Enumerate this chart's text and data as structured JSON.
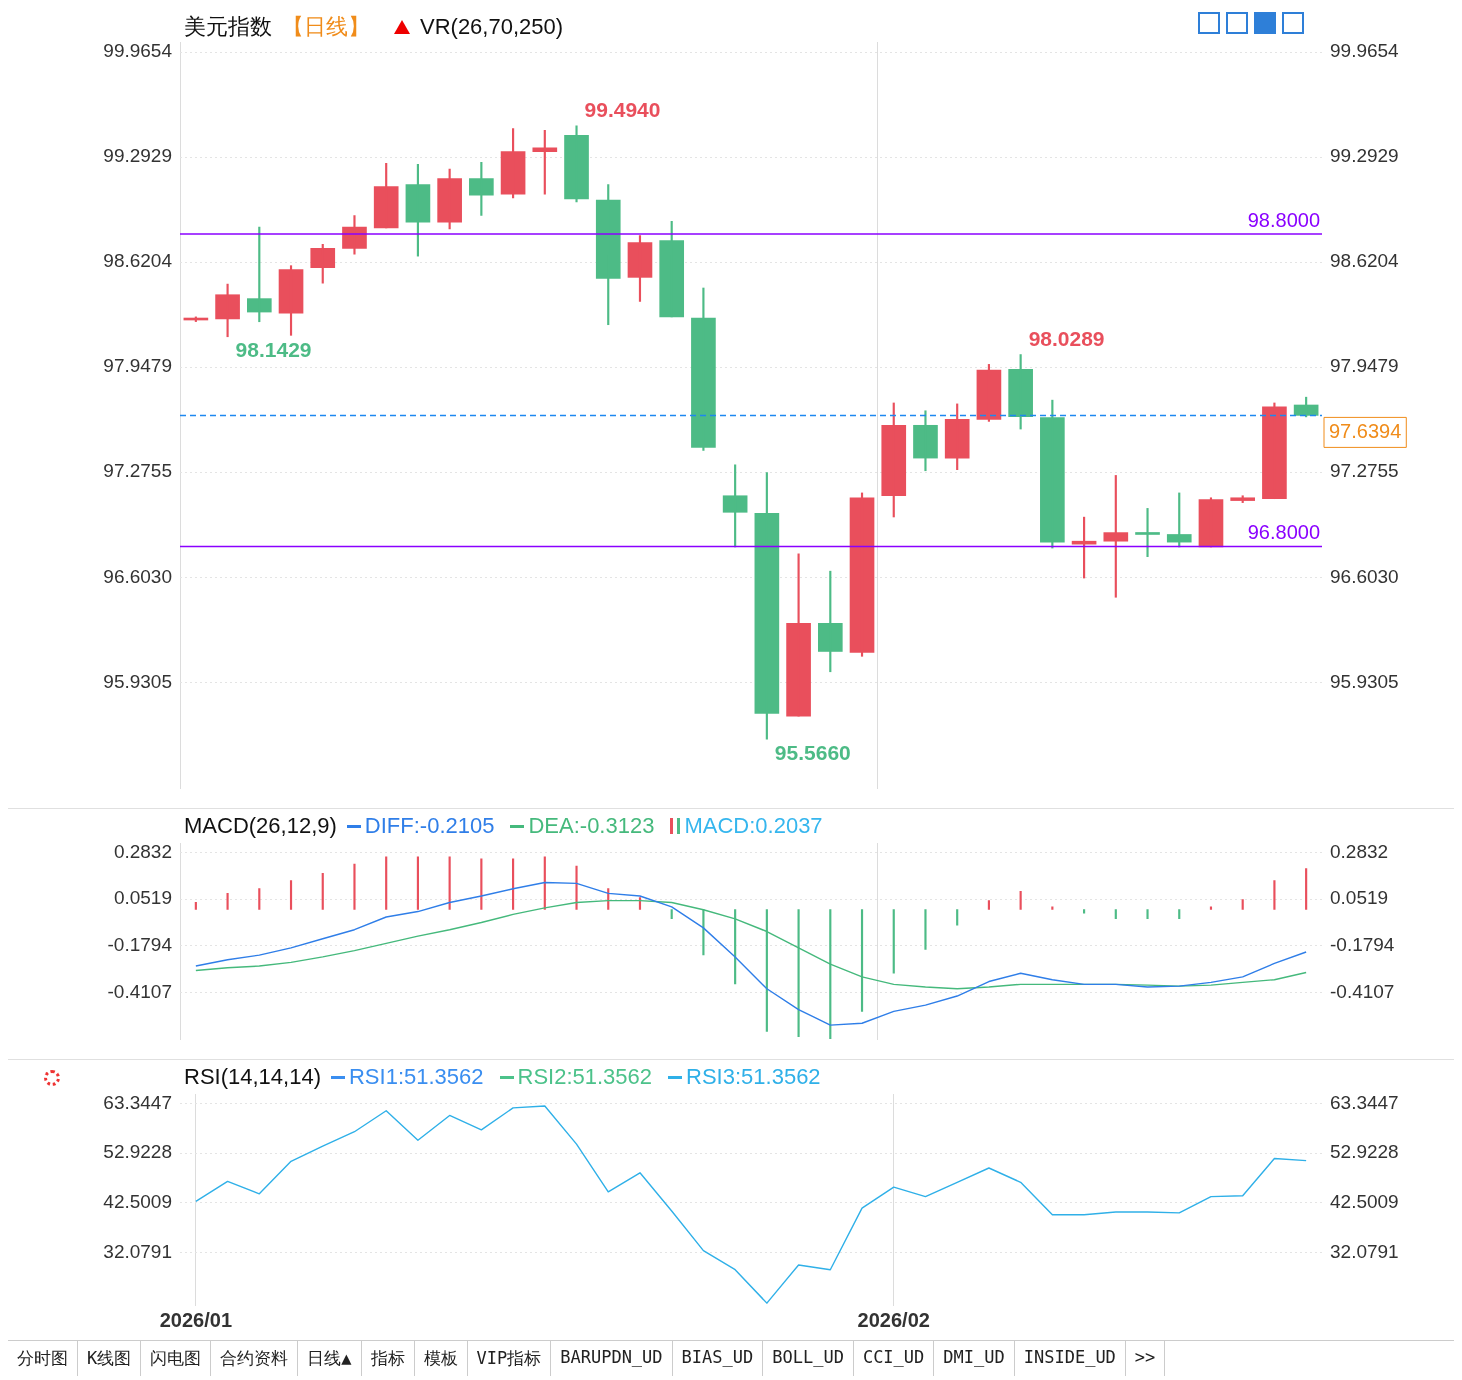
{
  "chart_data": [
    {
      "type": "candlestick",
      "title": "美元指数",
      "subtitle": "【日线】",
      "categories": [
        "2026/01",
        null,
        null,
        null,
        null,
        null,
        null,
        null,
        null,
        null,
        null,
        null,
        null,
        null,
        null,
        null,
        null,
        null,
        null,
        null,
        null,
        null,
        "2026/02",
        null,
        null,
        null,
        null,
        null,
        null,
        null,
        null,
        null,
        null,
        null,
        null,
        null
      ],
      "ohlc": [
        [
          98.25,
          98.27,
          98.24,
          98.26
        ],
        [
          98.257,
          98.48,
          98.1429,
          98.412
        ],
        [
          98.387,
          98.845,
          98.239,
          98.301
        ],
        [
          98.294,
          98.598,
          98.152,
          98.573
        ],
        [
          98.585,
          98.734,
          98.486,
          98.709
        ],
        [
          98.709,
          98.919,
          98.672,
          98.845
        ],
        [
          98.84,
          99.254,
          98.839,
          99.105
        ],
        [
          99.117,
          99.247,
          98.659,
          98.876
        ],
        [
          98.876,
          99.217,
          98.833,
          99.155
        ],
        [
          99.155,
          99.26,
          98.919,
          99.049
        ],
        [
          99.056,
          99.476,
          99.031,
          99.328
        ],
        [
          99.328,
          99.464,
          99.056,
          99.353
        ],
        [
          99.433,
          99.494,
          99.006,
          99.025
        ],
        [
          99.018,
          99.117,
          98.22,
          98.517
        ],
        [
          98.523,
          98.79,
          98.369,
          98.746
        ],
        [
          98.759,
          98.882,
          98.27,
          98.27
        ],
        [
          98.263,
          98.455,
          97.415,
          97.434
        ],
        [
          97.125,
          97.323,
          96.797,
          97.019
        ],
        [
          97.013,
          97.273,
          95.566,
          95.732
        ],
        [
          95.714,
          96.753,
          95.714,
          96.308
        ],
        [
          96.308,
          96.642,
          95.998,
          96.128
        ],
        [
          96.122,
          97.143,
          96.097,
          97.112
        ],
        [
          97.125,
          97.719,
          96.989,
          97.576
        ],
        [
          97.576,
          97.669,
          97.285,
          97.366
        ],
        [
          97.366,
          97.713,
          97.292,
          97.614
        ],
        [
          97.614,
          97.966,
          97.601,
          97.929
        ],
        [
          97.935,
          98.0289,
          97.552,
          97.632
        ],
        [
          97.626,
          97.737,
          96.79,
          96.828
        ],
        [
          96.815,
          96.988,
          96.598,
          96.834
        ],
        [
          96.834,
          97.255,
          96.475,
          96.889
        ],
        [
          96.889,
          97.044,
          96.735,
          96.877
        ],
        [
          96.877,
          97.143,
          96.797,
          96.828
        ],
        [
          96.797,
          97.112,
          96.797,
          97.1
        ],
        [
          97.094,
          97.125,
          97.081,
          97.112
        ],
        [
          97.106,
          97.719,
          97.106,
          97.694
        ],
        [
          97.706,
          97.756,
          97.63,
          97.6394
        ]
      ],
      "colors": [
        "#e94f5c",
        "#e94f5c",
        "#4dbb86",
        "#e94f5c",
        "#e94f5c",
        "#e94f5c",
        "#e94f5c",
        "#4dbb86",
        "#e94f5c",
        "#4dbb86",
        "#e94f5c",
        "#e94f5c",
        "#4dbb86",
        "#4dbb86",
        "#e94f5c",
        "#4dbb86",
        "#4dbb86",
        "#4dbb86",
        "#4dbb86",
        "#e94f5c",
        "#4dbb86",
        "#e94f5c",
        "#e94f5c",
        "#4dbb86",
        "#e94f5c",
        "#e94f5c",
        "#4dbb86",
        "#4dbb86",
        "#e94f5c",
        "#e94f5c",
        "#4dbb86",
        "#4dbb86",
        "#e94f5c",
        "#e94f5c",
        "#e94f5c",
        "#4dbb86"
      ],
      "ylim": [
        95.25,
        100.03
      ],
      "yticks": [
        99.9654,
        99.2929,
        98.6204,
        97.9479,
        97.2755,
        {
          "value": 96.603,
          "label": "96.6030"
        },
        95.9305
      ],
      "y2lim": [
        95.25,
        100.03
      ],
      "y2ticks": [
        99.9654,
        99.2929,
        98.6204,
        97.9479,
        97.2755,
        {
          "value": 96.603,
          "label": "96.6030"
        },
        95.9305
      ],
      "ref_lines": [
        {
          "axis": "y",
          "value": 98.8,
          "label": "98.8000",
          "color": "#8a00ff"
        },
        {
          "axis": "y",
          "value": 96.8,
          "label": "96.8000",
          "color": "#8a00ff"
        },
        {
          "axis": "y",
          "value": 97.6394,
          "label": "97.6394",
          "color": "#1e88f0",
          "line_style": "dashed"
        }
      ],
      "annotations": [
        "VR(26,70,250)",
        "99.4940",
        "98.1429",
        "98.0289",
        "95.5660"
      ],
      "grid": true,
      "tick_labels": "y"
    },
    {
      "type": "bar",
      "title": "MACD(26,12,9)",
      "categories": [
        "2026/01",
        null,
        null,
        null,
        null,
        null,
        null,
        null,
        null,
        null,
        null,
        null,
        null,
        null,
        null,
        null,
        null,
        null,
        null,
        null,
        null,
        null,
        "2026/02",
        null,
        null,
        null,
        null,
        null,
        null,
        null,
        null,
        null,
        null,
        null,
        null,
        null
      ],
      "series": [
        {
          "name": "DIFF:-0.2105",
          "type": "line",
          "color": "#2f7ee8",
          "values": [
            -0.28,
            -0.249,
            -0.226,
            -0.19,
            -0.145,
            -0.1,
            -0.037,
            -0.01,
            0.035,
            0.067,
            0.103,
            0.134,
            0.13,
            0.08,
            0.067,
            0.013,
            -0.091,
            -0.235,
            -0.393,
            -0.496,
            -0.573,
            -0.564,
            -0.505,
            -0.474,
            -0.429,
            -0.357,
            -0.316,
            -0.348,
            -0.371,
            -0.371,
            -0.384,
            -0.38,
            -0.361,
            -0.334,
            -0.267,
            -0.2105
          ]
        },
        {
          "name": "DEA:-0.3123",
          "type": "line",
          "color": "#45b97c",
          "values": [
            -0.302,
            -0.289,
            -0.28,
            -0.262,
            -0.235,
            -0.204,
            -0.168,
            -0.132,
            -0.1,
            -0.064,
            -0.024,
            0.008,
            0.035,
            0.044,
            0.044,
            0.035,
            -0.001,
            -0.046,
            -0.109,
            -0.19,
            -0.271,
            -0.334,
            -0.371,
            -0.384,
            -0.393,
            -0.384,
            -0.371,
            -0.371,
            -0.371,
            -0.371,
            -0.375,
            -0.38,
            -0.375,
            -0.361,
            -0.348,
            -0.3123
          ]
        },
        {
          "name": "MACD:0.2037",
          "type": "bar",
          "colors": [
            "#e94f5c",
            "#e94f5c",
            "#e94f5c",
            "#e94f5c",
            "#e94f5c",
            "#e94f5c",
            "#e94f5c",
            "#e94f5c",
            "#e94f5c",
            "#e94f5c",
            "#e94f5c",
            "#e94f5c",
            "#e94f5c",
            "#e94f5c",
            "#e94f5c",
            "#4dbb86",
            "#4dbb86",
            "#4dbb86",
            "#4dbb86",
            "#4dbb86",
            "#4dbb86",
            "#4dbb86",
            "#4dbb86",
            "#4dbb86",
            "#4dbb86",
            "#e94f5c",
            "#e94f5c",
            "#e94f5c",
            "#4dbb86",
            "#4dbb86",
            "#4dbb86",
            "#4dbb86",
            "#e94f5c",
            "#e94f5c",
            "#e94f5c",
            "#e94f5c"
          ],
          "values": [
            0.036,
            0.081,
            0.104,
            0.144,
            0.18,
            0.225,
            0.261,
            0.261,
            0.261,
            0.252,
            0.252,
            0.261,
            0.216,
            0.104,
            0.059,
            -0.045,
            -0.225,
            -0.369,
            -0.604,
            -0.631,
            -0.64,
            -0.505,
            -0.315,
            -0.198,
            -0.077,
            0.045,
            0.09,
            0.014,
            -0.018,
            -0.045,
            -0.045,
            -0.045,
            0.014,
            0.05,
            0.144,
            0.2037
          ]
        }
      ],
      "ylim": [
        -0.645,
        0.33
      ],
      "yticks": [
        0.2832,
        0.0519,
        -0.1794,
        -0.4107
      ],
      "y2lim": [
        -0.645,
        0.33
      ],
      "y2ticks": [
        0.2832,
        0.0519,
        -0.1794,
        -0.4107
      ],
      "legend": "top left",
      "grid": true,
      "tick_labels": "y",
      "marker": "none"
    },
    {
      "type": "line",
      "title": "RSI(14,14,14)",
      "categories": [
        "2026/01",
        null,
        null,
        null,
        null,
        null,
        null,
        null,
        null,
        null,
        null,
        null,
        null,
        null,
        null,
        null,
        null,
        null,
        null,
        null,
        null,
        null,
        "2026/02",
        null,
        null,
        null,
        null,
        null,
        null,
        null,
        null,
        null,
        null,
        null,
        null,
        null
      ],
      "series": [
        {
          "name": "RSI1:51.3562",
          "color": "#3a8ef0",
          "values": [
            null,
            null,
            null,
            null,
            null,
            null,
            null,
            null,
            null,
            null,
            null,
            null,
            null,
            null,
            null,
            null,
            null,
            null,
            null,
            null,
            null,
            null,
            null,
            null,
            null,
            null,
            null,
            null,
            null,
            null,
            null,
            null,
            null,
            null,
            null,
            null
          ]
        },
        {
          "name": "RSI2:51.3562",
          "color": "#4cc28a",
          "values": [
            null,
            null,
            null,
            null,
            null,
            null,
            null,
            null,
            null,
            null,
            null,
            null,
            null,
            null,
            null,
            null,
            null,
            null,
            null,
            null,
            null,
            null,
            null,
            null,
            null,
            null,
            null,
            null,
            null,
            null,
            null,
            null,
            null,
            null,
            null,
            null
          ]
        },
        {
          "name": "RSI3:51.3562",
          "color": "#2fb0e8",
          "values": [
            42.8,
            47.0,
            44.4,
            51.2,
            54.4,
            57.4,
            61.8,
            55.6,
            60.8,
            57.8,
            62.4,
            62.8,
            54.8,
            44.8,
            48.8,
            40.8,
            32.5,
            28.5,
            21.5,
            29.5,
            28.5,
            41.4,
            45.8,
            43.8,
            46.8,
            49.8,
            46.8,
            40.0,
            40.0,
            40.6,
            40.6,
            40.4,
            43.8,
            44.0,
            51.8,
            51.3562
          ]
        }
      ],
      "ylim": [
        20.9,
        65.3
      ],
      "yticks": [
        63.3447,
        52.9228,
        42.5009,
        32.0791
      ],
      "y2lim": [
        20.9,
        65.3
      ],
      "y2ticks": [
        63.3447,
        52.9228,
        42.5009,
        32.0791
      ],
      "legend": "top left",
      "grid": true,
      "marker": "none",
      "annotations": [
        "分时图",
        "K线图",
        "闪电图",
        "合约资料",
        "日线▲",
        "指标",
        "模板",
        "VIP指标",
        "BARUPDN_UD",
        "BIAS_UD",
        "BOLL_UD",
        "CCI_UD",
        "DMI_UD",
        "INSIDE_UD",
        ">>"
      ]
    }
  ]
}
